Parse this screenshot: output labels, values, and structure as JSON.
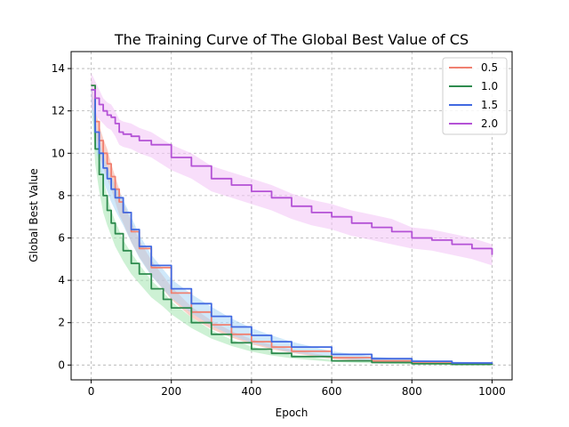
{
  "chart_data": {
    "type": "line",
    "title": "The Training Curve of The Global Best Value of CS",
    "xlabel": "Epoch",
    "ylabel": "Global Best Value",
    "xlim": [
      -50,
      1050
    ],
    "ylim": [
      -0.7,
      14.8
    ],
    "xticks": [
      0,
      200,
      400,
      600,
      800,
      1000
    ],
    "yticks": [
      0,
      2,
      4,
      6,
      8,
      10,
      12,
      14
    ],
    "grid": true,
    "legend_position": "top-right",
    "series": [
      {
        "name": "0.5",
        "color": "#f08070",
        "band_color": "#f5a99a",
        "x": [
          0,
          10,
          20,
          30,
          40,
          50,
          60,
          70,
          80,
          100,
          120,
          150,
          200,
          250,
          300,
          350,
          400,
          450,
          500,
          600,
          700,
          800,
          900,
          1000
        ],
        "y": [
          13.2,
          11.5,
          10.6,
          10.0,
          9.5,
          8.9,
          8.3,
          7.7,
          7.2,
          6.3,
          5.5,
          4.6,
          3.4,
          2.5,
          1.9,
          1.45,
          1.1,
          0.85,
          0.65,
          0.35,
          0.2,
          0.1,
          0.05,
          0.02
        ],
        "band": [
          0.5,
          0.6,
          0.7,
          0.7,
          0.7,
          0.6,
          0.6,
          0.6,
          0.5,
          0.5,
          0.4,
          0.35,
          0.3,
          0.25,
          0.2,
          0.15,
          0.12,
          0.1,
          0.08,
          0.06,
          0.05,
          0.04,
          0.03,
          0.02
        ]
      },
      {
        "name": "1.0",
        "color": "#2e8b4e",
        "band_color": "#a4e6b0",
        "x": [
          0,
          10,
          20,
          30,
          40,
          50,
          60,
          80,
          100,
          120,
          150,
          180,
          200,
          250,
          300,
          350,
          400,
          450,
          500,
          600,
          700,
          800,
          900,
          1000
        ],
        "y": [
          13.2,
          10.2,
          9.0,
          8.0,
          7.3,
          6.7,
          6.2,
          5.4,
          4.8,
          4.3,
          3.6,
          3.1,
          2.7,
          2.0,
          1.45,
          1.05,
          0.75,
          0.55,
          0.4,
          0.2,
          0.12,
          0.06,
          0.03,
          0.01
        ],
        "band": [
          0.5,
          0.7,
          0.8,
          0.8,
          0.7,
          0.6,
          0.6,
          0.5,
          0.5,
          0.45,
          0.4,
          0.35,
          0.3,
          0.25,
          0.2,
          0.15,
          0.12,
          0.1,
          0.08,
          0.05,
          0.04,
          0.03,
          0.02,
          0.01
        ]
      },
      {
        "name": "1.5",
        "color": "#4169e1",
        "band_color": "#a8d6f5",
        "x": [
          0,
          10,
          20,
          30,
          40,
          50,
          60,
          80,
          100,
          120,
          150,
          200,
          250,
          300,
          350,
          400,
          450,
          500,
          600,
          700,
          800,
          900,
          1000
        ],
        "y": [
          13.0,
          11.0,
          10.0,
          9.3,
          8.8,
          8.3,
          7.9,
          7.2,
          6.4,
          5.6,
          4.7,
          3.6,
          2.9,
          2.3,
          1.8,
          1.4,
          1.1,
          0.85,
          0.5,
          0.3,
          0.18,
          0.1,
          0.06
        ],
        "band": [
          0.5,
          0.6,
          0.6,
          0.6,
          0.6,
          0.6,
          0.6,
          0.6,
          0.6,
          0.55,
          0.5,
          0.45,
          0.45,
          0.45,
          0.4,
          0.35,
          0.3,
          0.25,
          0.15,
          0.1,
          0.08,
          0.06,
          0.05
        ]
      },
      {
        "name": "2.0",
        "color": "#b452d6",
        "band_color": "#f3c3f5",
        "x": [
          0,
          10,
          20,
          30,
          40,
          50,
          60,
          70,
          80,
          100,
          120,
          150,
          200,
          250,
          300,
          350,
          400,
          450,
          500,
          550,
          600,
          650,
          700,
          750,
          800,
          850,
          900,
          950,
          1000
        ],
        "y": [
          13.0,
          12.6,
          12.3,
          12.0,
          11.8,
          11.7,
          11.4,
          11.0,
          10.9,
          10.8,
          10.6,
          10.4,
          9.8,
          9.4,
          8.8,
          8.5,
          8.2,
          7.9,
          7.5,
          7.2,
          7.0,
          6.7,
          6.5,
          6.3,
          6.0,
          5.9,
          5.7,
          5.5,
          5.2
        ],
        "band": [
          0.8,
          0.8,
          0.7,
          0.6,
          0.6,
          0.6,
          0.6,
          0.6,
          0.6,
          0.6,
          0.6,
          0.6,
          0.6,
          0.6,
          0.6,
          0.6,
          0.6,
          0.6,
          0.6,
          0.6,
          0.6,
          0.6,
          0.6,
          0.6,
          0.5,
          0.5,
          0.5,
          0.5,
          0.5
        ]
      }
    ]
  }
}
